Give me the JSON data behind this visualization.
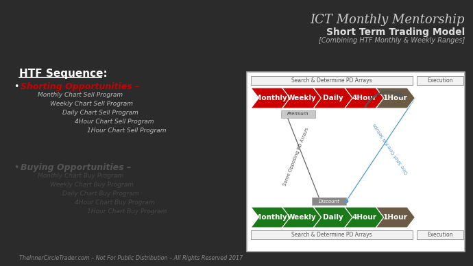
{
  "bg_color": "#2b2b2b",
  "title1": "ICT Monthly Mentorship",
  "title2": "Short Term Trading Model",
  "title3": "[Combining HTF Monthly & Weekly Ranges]",
  "htf_heading": "HTF Sequence:",
  "bullet1_text": "Shorting Opportunities –",
  "bullet1_color": "#cc0000",
  "sell_programs": [
    "Monthly Chart Sell Program",
    "Weekly Chart Sell Program",
    "Daily Chart Sell Program",
    "4Hour Chart Sell Program",
    "1Hour Chart Sell Program"
  ],
  "bullet2_text": "Buying Opportunities –",
  "bullet2_color": "#555555",
  "buy_programs": [
    "Monthly Chart Buy Program",
    "Weekly Chart Buy Program",
    "Daily Chart Buy Program",
    "4Hour Chart Buy Program",
    "1Hour Chart Buy Program"
  ],
  "footer": "TheInnerCircleTrader.com – Not For Public Distribution – All Rights Reserved 2017",
  "top_label_left": "Search & Determine PD Arrays",
  "top_label_right": "Execution",
  "bot_label_left": "Search & Determine PD Arrays",
  "bot_label_right": "Execution",
  "premium_label": "Premium",
  "discount_label": "Discount",
  "diagonal_text1": "Some Opposing PD Arrays",
  "diagonal_text2": "One Shot One Kill Setups",
  "red_color": "#cc0000",
  "green_color": "#1a7a1a",
  "brown_color": "#6b5a45",
  "arrow_labels": [
    "Monthly",
    "Weekly",
    "Daily",
    "4Hour",
    "1Hour"
  ]
}
